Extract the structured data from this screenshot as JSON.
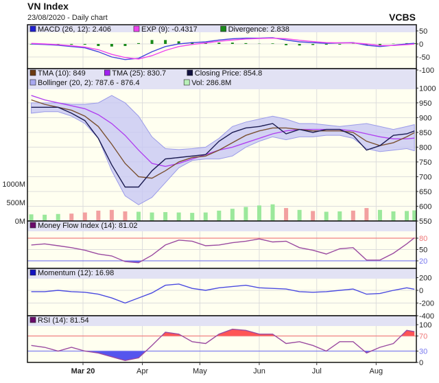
{
  "title": "VN Index",
  "subtitle": "23/08/2020 - Daily chart",
  "brand": "VCBS",
  "colors": {
    "plot_bg": "#fffff0",
    "header_bg": "#e2e2f4",
    "up": "#9be89b",
    "down": "#f2a0a0",
    "overbought": "#ff5555",
    "oversold": "#5555ee"
  },
  "chart_data": [
    {
      "type": "line",
      "id": "macd",
      "ylim": [
        -100,
        75
      ],
      "yticks": [
        50,
        0,
        -50,
        -100
      ],
      "grid": true,
      "legend": [
        {
          "label": "MACD (26, 12): 2.406",
          "color": "#2020d0"
        },
        {
          "label": "EXP (9): -0.4317",
          "color": "#ee44ee"
        },
        {
          "label": "Divergence: 2.838",
          "color": "#1a8a1a"
        }
      ],
      "series": [
        {
          "name": "MACD (26, 12)",
          "color": "#4444dd",
          "values": [
            0,
            -2,
            -5,
            -10,
            -15,
            -30,
            -50,
            -60,
            -55,
            -30,
            -10,
            0,
            5,
            8,
            15,
            20,
            22,
            22,
            24,
            15,
            8,
            5,
            2,
            4,
            5,
            -5,
            -10,
            -5,
            0,
            2.406
          ]
        },
        {
          "name": "EXP (9)",
          "color": "#ee44ee",
          "values": [
            2,
            0,
            -3,
            -7,
            -12,
            -22,
            -40,
            -52,
            -58,
            -45,
            -25,
            -10,
            -2,
            4,
            10,
            15,
            19,
            21,
            22,
            20,
            14,
            9,
            5,
            4,
            4,
            0,
            -6,
            -6,
            -3,
            -0.4317
          ]
        }
      ],
      "bars": {
        "name": "Divergence",
        "color": "#1a8a1a",
        "values": [
          -2,
          -2,
          -2,
          -3,
          -3,
          -8,
          -10,
          -8,
          3,
          15,
          15,
          10,
          7,
          4,
          5,
          5,
          3,
          1,
          2,
          -5,
          -6,
          -4,
          -3,
          0,
          1,
          -5,
          -4,
          1,
          3,
          2.838
        ]
      }
    },
    {
      "type": "line",
      "id": "price",
      "ylim": [
        550,
        1010
      ],
      "yticks": [
        1000,
        950,
        900,
        850,
        800,
        750,
        700,
        650,
        600,
        550
      ],
      "grid": true,
      "legend": [
        {
          "label": "TMA (10): 849",
          "color": "#6b3a10"
        },
        {
          "label": "TMA (25): 830.7",
          "color": "#a020f0"
        },
        {
          "label": "Closing Price: 854.8",
          "color": "#101040"
        },
        {
          "label": "Bollinger (20, 2): 787.6 - 876.4",
          "color": "#a8a8f0"
        },
        {
          "label": "Vol: 286.8M",
          "color": "#b8f0b8"
        }
      ],
      "band": {
        "name": "Bollinger (20, 2)",
        "color": "#c8c8f4",
        "upper": [
          950,
          950,
          950,
          945,
          945,
          950,
          975,
          950,
          905,
          835,
          795,
          792,
          795,
          800,
          830,
          870,
          885,
          895,
          905,
          895,
          880,
          880,
          875,
          870,
          875,
          880,
          870,
          860,
          870,
          876.4
        ],
        "lower": [
          915,
          920,
          920,
          905,
          880,
          830,
          720,
          635,
          605,
          630,
          680,
          730,
          755,
          760,
          760,
          770,
          800,
          820,
          835,
          825,
          835,
          835,
          840,
          840,
          830,
          795,
          785,
          790,
          795,
          787.6
        ]
      },
      "series": [
        {
          "name": "TMA (25)",
          "color": "#b040f0",
          "values": [
            975,
            960,
            950,
            940,
            930,
            910,
            880,
            840,
            790,
            745,
            735,
            745,
            760,
            775,
            790,
            800,
            815,
            830,
            845,
            855,
            860,
            860,
            860,
            860,
            855,
            845,
            835,
            828,
            828,
            830.7
          ]
        },
        {
          "name": "TMA (10)",
          "color": "#7a5030",
          "values": [
            960,
            945,
            935,
            925,
            905,
            870,
            810,
            745,
            700,
            695,
            720,
            750,
            765,
            770,
            790,
            815,
            840,
            855,
            865,
            865,
            860,
            855,
            855,
            855,
            850,
            820,
            805,
            815,
            835,
            849
          ]
        },
        {
          "name": "Closing Price",
          "color": "#1a1a50",
          "values": [
            935,
            935,
            935,
            915,
            890,
            830,
            740,
            665,
            665,
            720,
            760,
            765,
            770,
            775,
            820,
            850,
            865,
            870,
            880,
            845,
            860,
            850,
            860,
            860,
            840,
            790,
            805,
            840,
            845,
            854.8
          ]
        }
      ],
      "volume": {
        "name": "Vol",
        "unit": "M",
        "yticks_label": [
          "1000M",
          "500M",
          "0M"
        ],
        "yticks": [
          1000,
          500,
          0
        ],
        "values": [
          180,
          170,
          190,
          200,
          230,
          280,
          300,
          260,
          250,
          230,
          240,
          230,
          220,
          230,
          280,
          330,
          380,
          420,
          450,
          350,
          300,
          270,
          250,
          260,
          280,
          350,
          300,
          260,
          270,
          286.8
        ]
      }
    },
    {
      "type": "line",
      "id": "mfi",
      "ylim": [
        0,
        100
      ],
      "yticks": [
        80,
        50,
        20
      ],
      "bands": {
        "upper": 80,
        "lower": 20
      },
      "legend": [
        {
          "label": "Money Flow Index (14): 81.02",
          "color": "#6a0a6a"
        }
      ],
      "series": [
        {
          "name": "Money Flow Index (14)",
          "color": "#9a4aa0",
          "values": [
            62,
            65,
            60,
            55,
            48,
            38,
            33,
            18,
            15,
            35,
            62,
            75,
            72,
            60,
            62,
            68,
            72,
            78,
            70,
            72,
            55,
            48,
            38,
            52,
            55,
            22,
            22,
            40,
            65,
            81.02
          ]
        }
      ]
    },
    {
      "type": "line",
      "id": "momentum",
      "ylim": [
        -400,
        230
      ],
      "yticks": [
        200,
        0,
        -200,
        -400
      ],
      "grid": true,
      "legend": [
        {
          "label": "Momentum (12): 16.98",
          "color": "#1010c0"
        }
      ],
      "series": [
        {
          "name": "Momentum (12)",
          "color": "#4a4ae0",
          "values": [
            -20,
            -20,
            0,
            -20,
            -30,
            -60,
            -120,
            -200,
            -120,
            -40,
            80,
            100,
            30,
            0,
            40,
            60,
            80,
            40,
            30,
            20,
            -20,
            -30,
            -20,
            0,
            20,
            -60,
            -50,
            0,
            40,
            16.98
          ]
        }
      ]
    },
    {
      "type": "line",
      "id": "rsi",
      "ylim": [
        0,
        100
      ],
      "yticks": [
        100,
        70,
        30,
        0
      ],
      "bands": {
        "upper": 70,
        "lower": 30
      },
      "legend": [
        {
          "label": "RSI (14): 81.54",
          "color": "#6a0a6a"
        }
      ],
      "series": [
        {
          "name": "RSI (14)",
          "color": "#9a4aa0",
          "values": [
            45,
            40,
            30,
            40,
            30,
            25,
            15,
            5,
            12,
            45,
            80,
            75,
            55,
            50,
            75,
            88,
            85,
            75,
            75,
            50,
            55,
            45,
            30,
            55,
            55,
            25,
            40,
            50,
            85,
            81.54
          ]
        }
      ]
    }
  ],
  "x_dates": [
    "2020-02-03",
    "2020-02-10",
    "2020-02-17",
    "2020-02-24",
    "2020-03-02",
    "2020-03-09",
    "2020-03-16",
    "2020-03-23",
    "2020-03-30",
    "2020-04-06",
    "2020-04-13",
    "2020-04-20",
    "2020-04-27",
    "2020-05-04",
    "2020-05-11",
    "2020-05-18",
    "2020-05-25",
    "2020-06-01",
    "2020-06-08",
    "2020-06-15",
    "2020-06-22",
    "2020-06-29",
    "2020-07-06",
    "2020-07-13",
    "2020-07-20",
    "2020-07-27",
    "2020-08-03",
    "2020-08-10",
    "2020-08-17",
    "2020-08-21"
  ],
  "x_axis": {
    "ticks": [
      {
        "label": "Mar 20",
        "date": "2020-03-01",
        "bold": true
      },
      {
        "label": "Apr",
        "date": "2020-04-01"
      },
      {
        "label": "May",
        "date": "2020-05-01"
      },
      {
        "label": "Jun",
        "date": "2020-06-01"
      },
      {
        "label": "Jul",
        "date": "2020-07-01"
      },
      {
        "label": "Aug",
        "date": "2020-08-01"
      }
    ]
  }
}
